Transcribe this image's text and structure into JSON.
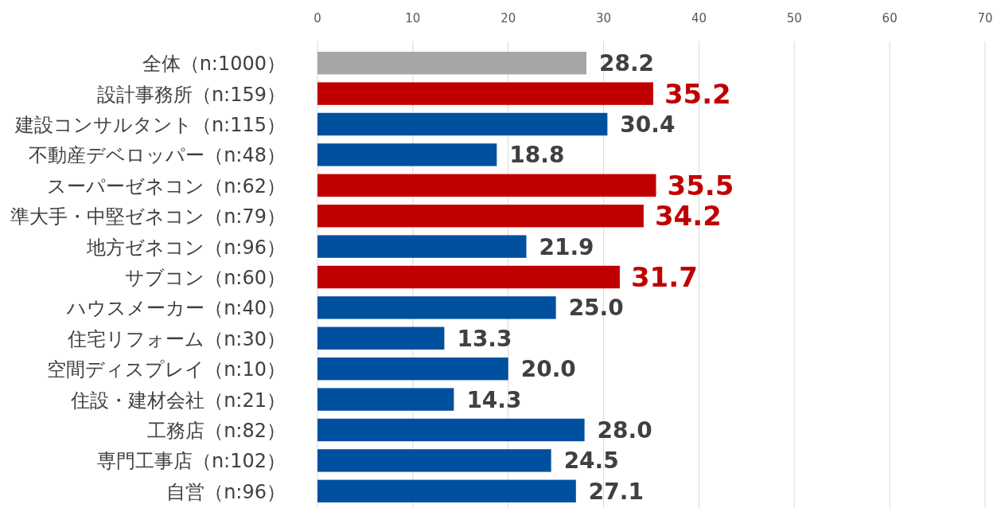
{
  "chart_data": {
    "type": "bar",
    "orientation": "horizontal",
    "categories": [
      "全体（n:1000）",
      "設計事務所（n:159）",
      "建設コンサルタント（n:115）",
      "不動産デベロッパー（n:48）",
      "スーパーゼネコン（n:62）",
      "準大手・中堅ゼネコン（n:79）",
      "地方ゼネコン（n:96）",
      "サブコン（n:60）",
      "ハウスメーカー（n:40）",
      "住宅リフォーム（n:30）",
      "空間ディスプレイ（n:10）",
      "住設・建材会社（n:21）",
      "工務店（n:82）",
      "専門工事店（n:102）",
      "自営（n:96）"
    ],
    "values": [
      28.2,
      35.2,
      30.4,
      18.8,
      35.5,
      34.2,
      21.9,
      31.7,
      25.0,
      13.3,
      20.0,
      14.3,
      28.0,
      24.5,
      27.1
    ],
    "value_labels": [
      "28.2",
      "35.2",
      "30.4",
      "18.8",
      "35.5",
      "34.2",
      "21.9",
      "31.7",
      "25.0",
      "13.3",
      "20.0",
      "14.3",
      "28.0",
      "24.5",
      "27.1"
    ],
    "colors": [
      "#a6a6a6",
      "#c00000",
      "#0050a0",
      "#0050a0",
      "#c00000",
      "#c00000",
      "#0050a0",
      "#c00000",
      "#0050a0",
      "#0050a0",
      "#0050a0",
      "#0050a0",
      "#0050a0",
      "#0050a0",
      "#0050a0"
    ],
    "xlim": [
      0,
      70
    ],
    "xticks": [
      0,
      10,
      20,
      30,
      40,
      50,
      60,
      70
    ],
    "grid": "x"
  }
}
